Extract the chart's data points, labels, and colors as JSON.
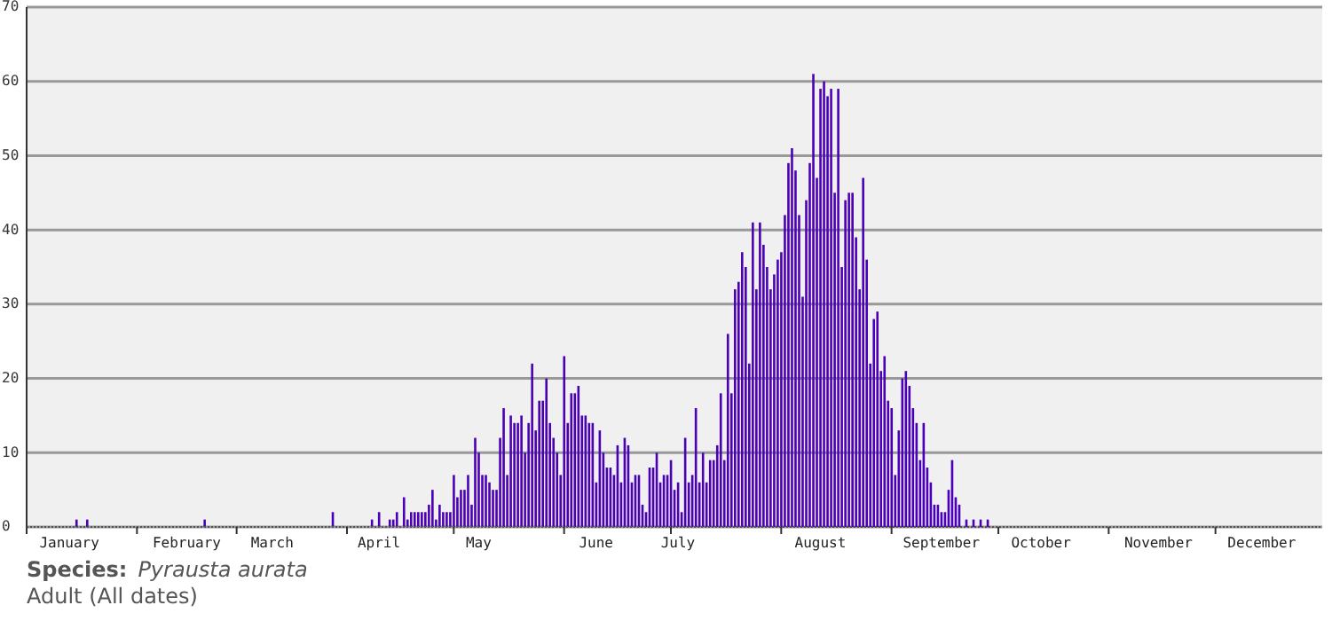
{
  "chart_data": {
    "type": "bar",
    "title": "Species: Pyrausta aurata",
    "subtitle": "Adult (All dates)",
    "color": "#4b00b8",
    "grid": "y",
    "xlim": [
      "--01-01",
      "--12-31"
    ],
    "xticks": [
      {
        "value": "--01-01",
        "label": null
      },
      {
        "value": "--01-13",
        "label": "January"
      },
      {
        "value": "--02-01",
        "label": null
      },
      {
        "value": "--02-15",
        "label": "February"
      },
      {
        "value": "--03-01",
        "label": null
      },
      {
        "value": "--03-11",
        "label": "March"
      },
      {
        "value": "--04-01",
        "label": null
      },
      {
        "value": "--04-10",
        "label": "April"
      },
      {
        "value": "--05-01",
        "label": null
      },
      {
        "value": "--05-08",
        "label": "May"
      },
      {
        "value": "--06-01",
        "label": null
      },
      {
        "value": "--06-10",
        "label": "June"
      },
      {
        "value": "--07-01",
        "label": null
      },
      {
        "value": "--07-03",
        "label": "July"
      },
      {
        "value": "--08-01",
        "label": null
      },
      {
        "value": "--08-12",
        "label": "August"
      },
      {
        "value": "--09-01",
        "label": null
      },
      {
        "value": "--09-15",
        "label": "September"
      },
      {
        "value": "--10-01",
        "label": null
      },
      {
        "value": "--10-13",
        "label": "October"
      },
      {
        "value": "--11-01",
        "label": null
      },
      {
        "value": "--11-15",
        "label": "November"
      },
      {
        "value": "--12-01",
        "label": null
      },
      {
        "value": "--12-14",
        "label": "December"
      }
    ],
    "ylim": [
      0,
      70
    ],
    "yticks": [
      0,
      10,
      20,
      30,
      40,
      50,
      60,
      70
    ],
    "x": [
      "--01-15",
      "--01-18",
      "--02-20",
      "--03-28",
      "--04-08",
      "--04-10",
      "--04-13",
      "--04-14",
      "--04-15",
      "--04-17",
      "--04-18",
      "--04-19",
      "--04-20",
      "--04-21",
      "--04-22",
      "--04-23",
      "--04-24",
      "--04-25",
      "--04-26",
      "--04-27",
      "--04-28",
      "--04-29",
      "--04-30",
      "--05-01",
      "--05-02",
      "--05-03",
      "--05-04",
      "--05-05",
      "--05-06",
      "--05-07",
      "--05-08",
      "--05-09",
      "--05-10",
      "--05-11",
      "--05-12",
      "--05-13",
      "--05-14",
      "--05-15",
      "--05-16",
      "--05-17",
      "--05-18",
      "--05-19",
      "--05-20",
      "--05-21",
      "--05-22",
      "--05-23",
      "--05-24",
      "--05-25",
      "--05-26",
      "--05-27",
      "--05-28",
      "--05-29",
      "--05-30",
      "--05-31",
      "--06-01",
      "--06-02",
      "--06-03",
      "--06-04",
      "--06-05",
      "--06-06",
      "--06-07",
      "--06-08",
      "--06-09",
      "--06-10",
      "--06-11",
      "--06-12",
      "--06-13",
      "--06-14",
      "--06-15",
      "--06-16",
      "--06-17",
      "--06-18",
      "--06-19",
      "--06-20",
      "--06-21",
      "--06-22",
      "--06-23",
      "--06-24",
      "--06-25",
      "--06-26",
      "--06-27",
      "--06-28",
      "--06-29",
      "--06-30",
      "--07-01",
      "--07-02",
      "--07-03",
      "--07-04",
      "--07-05",
      "--07-06",
      "--07-07",
      "--07-08",
      "--07-09",
      "--07-10",
      "--07-11",
      "--07-12",
      "--07-13",
      "--07-14",
      "--07-15",
      "--07-16",
      "--07-17",
      "--07-18",
      "--07-19",
      "--07-20",
      "--07-21",
      "--07-22",
      "--07-23",
      "--07-24",
      "--07-25",
      "--07-26",
      "--07-27",
      "--07-28",
      "--07-29",
      "--07-30",
      "--07-31",
      "--08-01",
      "--08-02",
      "--08-03",
      "--08-04",
      "--08-05",
      "--08-06",
      "--08-07",
      "--08-08",
      "--08-09",
      "--08-10",
      "--08-11",
      "--08-12",
      "--08-13",
      "--08-14",
      "--08-15",
      "--08-16",
      "--08-17",
      "--08-18",
      "--08-19",
      "--08-20",
      "--08-21",
      "--08-22",
      "--08-23",
      "--08-24",
      "--08-25",
      "--08-26",
      "--08-27",
      "--08-28",
      "--08-29",
      "--08-30",
      "--08-31",
      "--09-01",
      "--09-02",
      "--09-03",
      "--09-04",
      "--09-05",
      "--09-06",
      "--09-07",
      "--09-08",
      "--09-09",
      "--09-10",
      "--09-11",
      "--09-12",
      "--09-13",
      "--09-14",
      "--09-15",
      "--09-16",
      "--09-17",
      "--09-18",
      "--09-19",
      "--09-20",
      "--09-22",
      "--09-24",
      "--09-26",
      "--09-28"
    ],
    "values": [
      1,
      1,
      1,
      2,
      1,
      2,
      1,
      1,
      2,
      4,
      1,
      2,
      2,
      2,
      2,
      2,
      3,
      5,
      1,
      3,
      2,
      2,
      2,
      7,
      4,
      5,
      5,
      7,
      3,
      12,
      10,
      7,
      7,
      6,
      5,
      5,
      12,
      16,
      7,
      15,
      14,
      14,
      15,
      10,
      14,
      22,
      13,
      17,
      17,
      20,
      14,
      12,
      10,
      7,
      23,
      14,
      18,
      18,
      19,
      15,
      15,
      14,
      14,
      6,
      13,
      10,
      8,
      8,
      7,
      11,
      6,
      12,
      11,
      6,
      7,
      7,
      3,
      2,
      8,
      8,
      10,
      6,
      7,
      7,
      9,
      5,
      6,
      2,
      12,
      6,
      7,
      16,
      6,
      10,
      6,
      9,
      9,
      11,
      18,
      9,
      26,
      18,
      32,
      33,
      37,
      35,
      22,
      41,
      32,
      41,
      38,
      35,
      32,
      34,
      36,
      37,
      42,
      49,
      51,
      48,
      42,
      31,
      44,
      49,
      61,
      47,
      59,
      60,
      58,
      59,
      45,
      59,
      35,
      44,
      45,
      45,
      39,
      32,
      47,
      36,
      22,
      28,
      29,
      21,
      23,
      17,
      16,
      7,
      13,
      20,
      21,
      19,
      16,
      14,
      9,
      14,
      8,
      6,
      3,
      3,
      2,
      2,
      5,
      9,
      4,
      3,
      1,
      1,
      1,
      1
    ]
  }
}
